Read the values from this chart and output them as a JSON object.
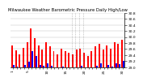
{
  "title": "Milwaukee Weather Barometric Pressure Daily High/Low",
  "high_color": "#ff0000",
  "low_color": "#0000ff",
  "background_color": "#ffffff",
  "ylim_min": 29.0,
  "ylim_max": 30.8,
  "yticks": [
    29.0,
    29.2,
    29.4,
    29.6,
    29.8,
    30.0,
    30.2,
    30.4,
    30.6,
    30.8
  ],
  "ytick_labels": [
    "29.0",
    "29.2",
    "29.4",
    "29.6",
    "29.8",
    "30.0",
    "30.2",
    "30.4",
    "30.6",
    "30.8"
  ],
  "days": [
    1,
    2,
    3,
    4,
    5,
    6,
    7,
    8,
    9,
    10,
    11,
    12,
    13,
    14,
    15,
    16,
    17,
    18,
    19,
    20,
    21,
    22,
    23,
    24,
    25,
    26,
    27,
    28,
    29,
    30
  ],
  "highs": [
    29.72,
    29.55,
    29.42,
    29.65,
    29.82,
    30.28,
    29.95,
    29.72,
    29.58,
    29.82,
    29.68,
    29.52,
    29.42,
    29.62,
    29.52,
    29.48,
    29.42,
    29.58,
    29.62,
    29.48,
    29.38,
    29.52,
    29.68,
    29.78,
    29.58,
    29.72,
    29.62,
    29.82,
    29.78,
    29.92
  ],
  "lows": [
    29.08,
    29.02,
    29.0,
    29.08,
    29.18,
    29.52,
    29.38,
    29.08,
    29.05,
    29.12,
    29.05,
    29.0,
    29.0,
    29.02,
    29.0,
    29.0,
    29.0,
    29.0,
    29.05,
    29.0,
    29.0,
    29.0,
    29.05,
    29.12,
    29.0,
    29.08,
    29.02,
    29.12,
    29.1,
    29.22
  ],
  "bar_width": 0.42,
  "dotted_vlines": [
    17,
    18,
    19,
    20
  ],
  "grid_color": "#bbbbbb",
  "tick_fontsize": 3.2,
  "title_fontsize": 3.8
}
